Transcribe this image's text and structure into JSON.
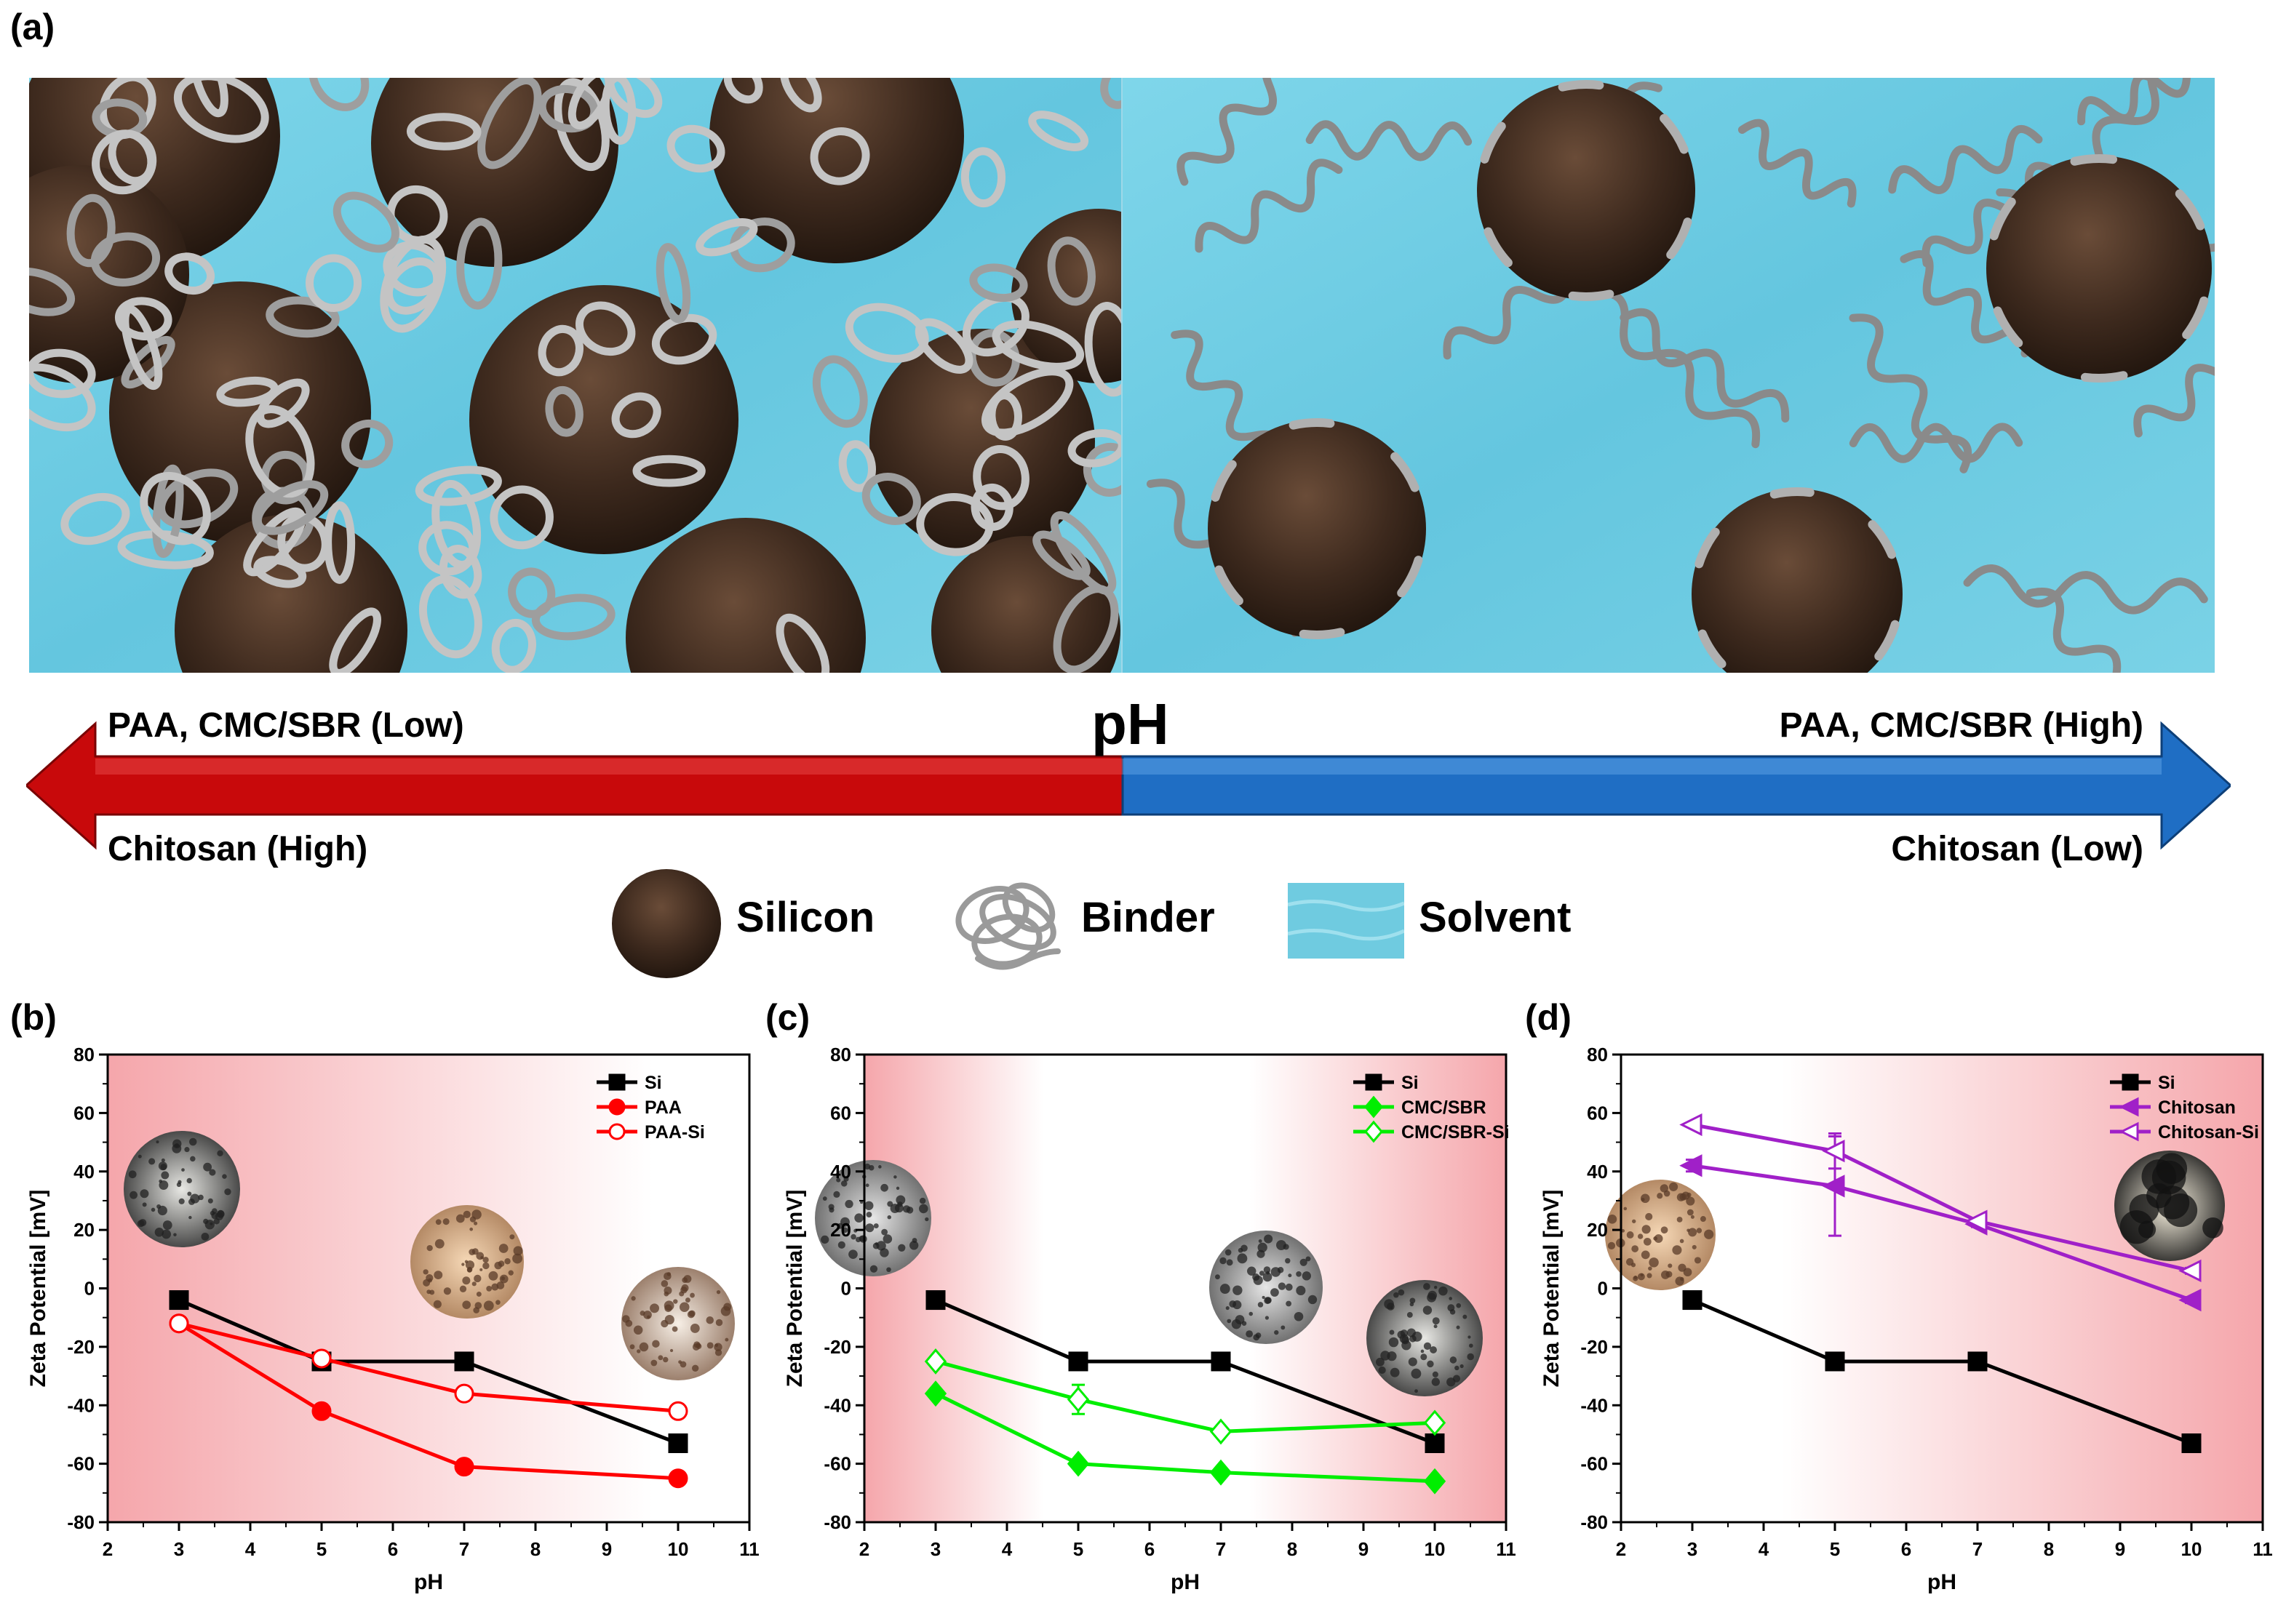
{
  "schematic": {
    "panel_label": "(a)",
    "scale_label": "pH",
    "left_top": "PAA, CMC/SBR (Low)",
    "left_bottom": "Chitosan (High)",
    "right_top": "PAA, CMC/SBR (High)",
    "right_bottom": "Chitosan (Low)",
    "legend": [
      {
        "name": "Silicon",
        "icon": "silicon-sphere-icon"
      },
      {
        "name": "Binder",
        "icon": "binder-coil-icon"
      },
      {
        "name": "Solvent",
        "icon": "solvent-water-icon"
      }
    ],
    "colors": {
      "low_arrow": "#c8090b",
      "high_arrow": "#1f6ec4",
      "solvent": "#6fcbe0",
      "silicon": "#3e2a1e",
      "binder": "#b9b9b9"
    }
  },
  "chart_data": [
    {
      "panel_label": "(b)",
      "type": "line",
      "xlabel": "pH",
      "ylabel": "Zeta Potential [mV]",
      "xlim": [
        2,
        11
      ],
      "ylim": [
        -80,
        80
      ],
      "xticks": [
        "2",
        "3",
        "4",
        "5",
        "6",
        "7",
        "8",
        "9",
        "10",
        "11"
      ],
      "yticks": [
        "-80",
        "-60",
        "-40",
        "-20",
        "0",
        "20",
        "40",
        "60",
        "80"
      ],
      "background_gradient": "red-left",
      "legend_position": "top-right",
      "series": [
        {
          "name": "Si",
          "color": "#000000",
          "marker": "square",
          "filled": true,
          "x": [
            3,
            5,
            7,
            10
          ],
          "y": [
            -4,
            -25,
            -25,
            -53
          ],
          "err": [
            0,
            0,
            0,
            0
          ]
        },
        {
          "name": "PAA",
          "color": "#ff0000",
          "marker": "circle",
          "filled": true,
          "x": [
            3,
            5,
            7,
            10
          ],
          "y": [
            -12,
            -42,
            -61,
            -65
          ],
          "err": [
            0,
            0,
            0,
            0
          ]
        },
        {
          "name": "PAA-Si",
          "color": "#ff0000",
          "marker": "circle",
          "filled": false,
          "x": [
            3,
            5,
            7,
            10
          ],
          "y": [
            -12,
            -24,
            -36,
            -42
          ],
          "err": [
            1,
            1,
            1,
            1
          ]
        }
      ]
    },
    {
      "panel_label": "(c)",
      "type": "line",
      "xlabel": "pH",
      "ylabel": "Zeta Potential [mV]",
      "xlim": [
        2,
        11
      ],
      "ylim": [
        -80,
        80
      ],
      "xticks": [
        "2",
        "3",
        "4",
        "5",
        "6",
        "7",
        "8",
        "9",
        "10",
        "11"
      ],
      "yticks": [
        "-80",
        "-60",
        "-40",
        "-20",
        "0",
        "20",
        "40",
        "60",
        "80"
      ],
      "background_gradient": "red-both",
      "legend_position": "top-right",
      "series": [
        {
          "name": "Si",
          "color": "#000000",
          "marker": "square",
          "filled": true,
          "x": [
            3,
            5,
            7,
            10
          ],
          "y": [
            -4,
            -25,
            -25,
            -53
          ],
          "err": [
            0,
            0,
            0,
            0
          ]
        },
        {
          "name": "CMC/SBR",
          "color": "#00ee00",
          "marker": "diamond",
          "filled": true,
          "x": [
            3,
            5,
            7,
            10
          ],
          "y": [
            -36,
            -60,
            -63,
            -66
          ],
          "err": [
            0,
            0,
            0,
            0
          ]
        },
        {
          "name": "CMC/SBR-Si",
          "color": "#00ee00",
          "marker": "diamond",
          "filled": false,
          "x": [
            3,
            5,
            7,
            10
          ],
          "y": [
            -25,
            -38,
            -49,
            -46
          ],
          "err": [
            1,
            5,
            1,
            1
          ]
        }
      ]
    },
    {
      "panel_label": "(d)",
      "type": "line",
      "xlabel": "pH",
      "ylabel": "Zeta Potential [mV]",
      "xlim": [
        2,
        11
      ],
      "ylim": [
        -80,
        80
      ],
      "xticks": [
        "2",
        "3",
        "4",
        "5",
        "6",
        "7",
        "8",
        "9",
        "10",
        "11"
      ],
      "yticks": [
        "-80",
        "-60",
        "-40",
        "-20",
        "0",
        "20",
        "40",
        "60",
        "80"
      ],
      "background_gradient": "red-right",
      "legend_position": "top-right",
      "series": [
        {
          "name": "Si",
          "color": "#000000",
          "marker": "square",
          "filled": true,
          "x": [
            3,
            5,
            7,
            10
          ],
          "y": [
            -4,
            -25,
            -25,
            -53
          ],
          "err": [
            0,
            0,
            0,
            0
          ]
        },
        {
          "name": "Chitosan",
          "color": "#a020c8",
          "marker": "triangle-left",
          "filled": true,
          "x": [
            3,
            5,
            7,
            10
          ],
          "y": [
            42,
            35,
            22,
            -4
          ],
          "err": [
            2,
            17,
            1,
            1
          ]
        },
        {
          "name": "Chitosan-Si",
          "color": "#a020c8",
          "marker": "triangle-left",
          "filled": false,
          "x": [
            3,
            5,
            7,
            10
          ],
          "y": [
            56,
            47,
            23,
            6
          ],
          "err": [
            0,
            6,
            1,
            1
          ]
        }
      ]
    }
  ]
}
